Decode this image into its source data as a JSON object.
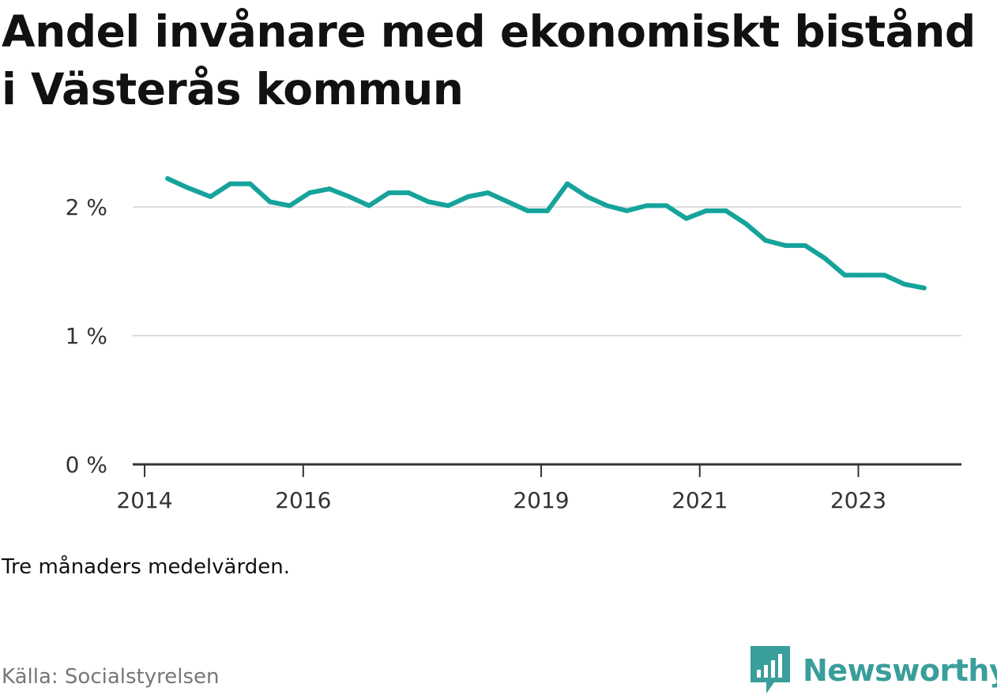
{
  "title": "Andel invånare med ekonomiskt bistånd i Västerås kommun",
  "note": "Tre månaders medelvärden.",
  "source": "Källa: Socialstyrelsen",
  "logo_text": "Newsworthy",
  "colors": {
    "line": "#15a39b",
    "grid": "#dddddd",
    "axis": "#333333",
    "logo": "#3a9e9b"
  },
  "chart_data": {
    "type": "line",
    "title": "Andel invånare med ekonomiskt bistånd i Västerås kommun",
    "xlabel": "",
    "ylabel": "",
    "x_ticks": [
      "2014",
      "2016",
      "2019",
      "2021",
      "2023"
    ],
    "x_tick_values": [
      2014,
      2016,
      2019,
      2021,
      2023
    ],
    "y_ticks": [
      "0 %",
      "1 %",
      "2 %"
    ],
    "y_tick_values": [
      0,
      1,
      2
    ],
    "ylim": [
      0,
      2.4
    ],
    "xlim": [
      2013.85,
      2024.3
    ],
    "grid": true,
    "series": [
      {
        "x": [
          2014.29,
          2014.54,
          2014.83,
          2015.08,
          2015.33,
          2015.58,
          2015.83,
          2016.08,
          2016.33,
          2016.58,
          2016.83,
          2017.08,
          2017.33,
          2017.58,
          2017.83,
          2018.08,
          2018.33,
          2018.58,
          2018.83,
          2019.08,
          2019.33,
          2019.58,
          2019.83,
          2020.08,
          2020.33,
          2020.58,
          2020.83,
          2021.08,
          2021.33,
          2021.58,
          2021.83,
          2022.08,
          2022.33,
          2022.58,
          2022.83,
          2023.08,
          2023.33,
          2023.58,
          2023.83
        ],
        "values": [
          2.22,
          2.15,
          2.08,
          2.18,
          2.18,
          2.04,
          2.01,
          2.11,
          2.14,
          2.08,
          2.01,
          2.11,
          2.11,
          2.04,
          2.01,
          2.08,
          2.11,
          2.04,
          1.97,
          1.97,
          2.18,
          2.08,
          2.01,
          1.97,
          2.01,
          2.01,
          1.91,
          1.97,
          1.97,
          1.87,
          1.74,
          1.7,
          1.7,
          1.6,
          1.47,
          1.47,
          1.47,
          1.4,
          1.37
        ]
      }
    ]
  }
}
